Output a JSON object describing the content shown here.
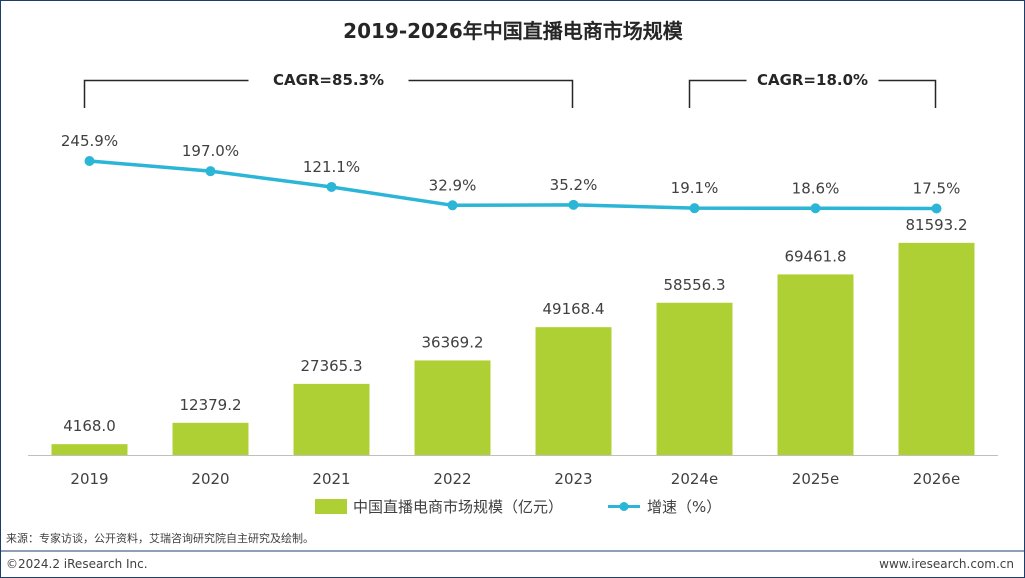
{
  "chart_data": {
    "type": "bar",
    "title": "2019-2026年中国直播电商市场规模",
    "categories": [
      "2019",
      "2020",
      "2021",
      "2022",
      "2023",
      "2024e",
      "2025e",
      "2026e"
    ],
    "series": [
      {
        "name": "中国直播电商市场规模（亿元）",
        "type": "bar",
        "color": "#afd035",
        "values": [
          4168.0,
          12379.2,
          27365.3,
          36369.2,
          49168.4,
          58556.3,
          69461.8,
          81593.2
        ],
        "labels": [
          "4168.0",
          "12379.2",
          "27365.3",
          "36369.2",
          "49168.4",
          "58556.3",
          "69461.8",
          "81593.2"
        ]
      },
      {
        "name": "增速（%）",
        "type": "line",
        "color": "#2bb5d6",
        "values": [
          245.9,
          197.0,
          121.1,
          32.9,
          35.2,
          19.1,
          18.6,
          17.5
        ],
        "labels": [
          "245.9%",
          "197.0%",
          "121.1%",
          "32.9%",
          "35.2%",
          "19.1%",
          "18.6%",
          "17.5%"
        ]
      }
    ],
    "annotations": [
      {
        "text": "CAGR=85.3%",
        "from": "2019",
        "to": "2023"
      },
      {
        "text": "CAGR=18.0%",
        "from": "2024e",
        "to": "2026e"
      }
    ],
    "legend_position": "bottom",
    "grid": false
  },
  "footer": {
    "source": "来源：专家访谈，公开资料，艾瑞咨询研究院自主研究及绘制。",
    "copyright": "©2024.2 iResearch Inc.",
    "website": "www.iresearch.com.cn"
  }
}
